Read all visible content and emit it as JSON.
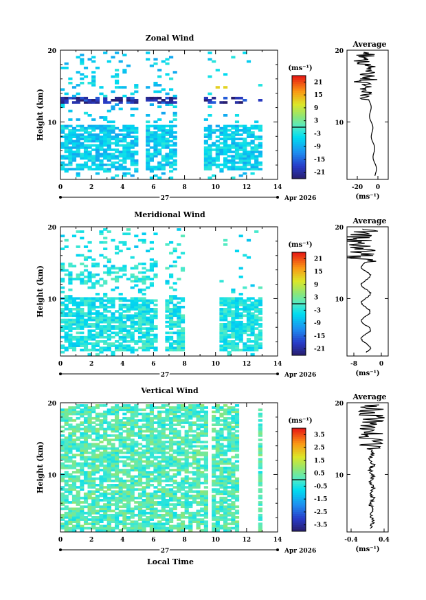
{
  "chart_data": [
    {
      "type": "heatmap",
      "title": "Zonal Wind",
      "ylabel": "Height (km)",
      "x_ticks": [
        "0",
        "2",
        "4",
        "6",
        "8",
        "10",
        "12",
        "14"
      ],
      "y_ticks": [
        "20",
        "10"
      ],
      "xlim": [
        0,
        14
      ],
      "ylim": [
        2,
        20
      ],
      "date_marker": "27",
      "date_label": "Apr 2026",
      "colorbar": {
        "unit": "(ms⁻¹)",
        "ticks": [
          "21",
          "15",
          "9",
          "3",
          "-3",
          "-9",
          "-15",
          "-21"
        ],
        "range": [
          -24,
          24
        ]
      },
      "profile": {
        "title": "Average",
        "x_ticks": [
          "-20",
          "0"
        ],
        "unit": "(ms⁻¹)",
        "xlim": [
          -30,
          10
        ],
        "y_ticks": [
          "20",
          "10"
        ]
      },
      "data_coverage": {
        "dense_band_km": [
          3.0,
          9.5
        ],
        "jet_band_km": [
          12.5,
          13.5
        ],
        "gap_hours": [
          [
            5.0,
            5.3
          ],
          [
            7.5,
            9.0
          ]
        ],
        "typical_value": -6,
        "jet_value": -20
      }
    },
    {
      "type": "heatmap",
      "title": "Meridional Wind",
      "ylabel": "Height (km)",
      "x_ticks": [
        "0",
        "2",
        "4",
        "6",
        "8",
        "10",
        "12",
        "14"
      ],
      "y_ticks": [
        "20",
        "10"
      ],
      "xlim": [
        0,
        14
      ],
      "ylim": [
        2,
        20
      ],
      "date_marker": "27",
      "date_label": "Apr 2026",
      "colorbar": {
        "unit": "(ms⁻¹)",
        "ticks": [
          "21",
          "15",
          "9",
          "3",
          "-3",
          "-9",
          "-15",
          "-21"
        ],
        "range": [
          -24,
          24
        ]
      },
      "profile": {
        "title": "Average",
        "x_ticks": [
          "-8",
          "0"
        ],
        "unit": "(ms⁻¹)",
        "xlim": [
          -10,
          2
        ],
        "y_ticks": [
          "20",
          "10"
        ]
      },
      "data_coverage": {
        "dense_band_km": [
          2.5,
          10.0
        ],
        "upper_band_km": [
          12.0,
          15.0
        ],
        "gap_hours": [
          [
            6.2,
            6.5
          ],
          [
            8.0,
            10.0
          ]
        ],
        "typical_value": -3
      }
    },
    {
      "type": "heatmap",
      "title": "Vertical Wind",
      "ylabel": "Height (km)",
      "xlabel": "Local Time",
      "x_ticks": [
        "0",
        "2",
        "4",
        "6",
        "8",
        "10",
        "12",
        "14"
      ],
      "y_ticks": [
        "20",
        "10"
      ],
      "xlim": [
        0,
        14
      ],
      "ylim": [
        2,
        20
      ],
      "date_marker": "27",
      "date_label": "Apr 2026",
      "colorbar": {
        "unit": "(ms⁻¹)",
        "ticks": [
          "3.5",
          "2.5",
          "1.5",
          "0.5",
          "-0.5",
          "-1.5",
          "-2.5",
          "-3.5"
        ],
        "range": [
          -4,
          4
        ]
      },
      "profile": {
        "title": "Average",
        "x_ticks": [
          "-0.4",
          "0.4"
        ],
        "unit": "(ms⁻¹)",
        "xlim": [
          -0.5,
          0.5
        ],
        "y_ticks": [
          "20",
          "10"
        ]
      },
      "data_coverage": {
        "dense_band_km": [
          2.0,
          19.5
        ],
        "gap_hours": [
          [
            9.3,
            9.6
          ],
          [
            11.5,
            12.5
          ]
        ],
        "typical_value": 0.1
      }
    }
  ]
}
